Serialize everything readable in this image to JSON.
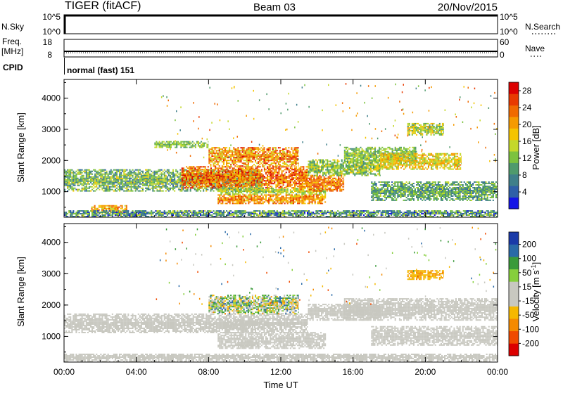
{
  "header": {
    "station": "TIGER (fitACF)",
    "beam": "Beam 03",
    "date": "20/Nov/2015"
  },
  "status_panels": {
    "nsky_label": "N.Sky",
    "nsky_ticks": [
      "10^5",
      "10^0"
    ],
    "nsearch_label": "N.Search",
    "nsearch_ticks": [
      "10^5",
      "10^0"
    ],
    "freq_label_1": "Freq.",
    "freq_label_2": "[MHz]",
    "freq_ticks": [
      "18",
      "8"
    ],
    "nave_label": "Nave",
    "nave_ticks": [
      "60",
      "0"
    ],
    "cpid_label": "CPID",
    "cpid_text": "normal (fast) 151"
  },
  "colors": {
    "power_scale": [
      "#1414e6",
      "#2f5fa8",
      "#3f7f8a",
      "#4f9a6c",
      "#7cc23e",
      "#c4d82a",
      "#f5c400",
      "#f59a00",
      "#f06a00",
      "#e83a00",
      "#dc0000"
    ],
    "velocity_scale": [
      "#dc0000",
      "#f04a00",
      "#f58a00",
      "#f5b800",
      "#c8c8c0",
      "#c8c8c0",
      "#86cf3c",
      "#3a9a3a",
      "#2a6aa8",
      "#1a3aa8"
    ]
  },
  "chart_data": [
    {
      "type": "heatmap",
      "title": "",
      "xlabel": "",
      "ylabel": "Slant Range [km]",
      "x_ticks": [
        "00:00",
        "04:00",
        "08:00",
        "12:00",
        "16:00",
        "20:00",
        "00:00"
      ],
      "xlim_hours": [
        0,
        24
      ],
      "y_ticks": [
        "1000",
        "2000",
        "3000",
        "4000"
      ],
      "ylim_km": [
        180,
        4600
      ],
      "colorbar": {
        "label": "Power [dB]",
        "ticks": [
          "4",
          "8",
          "12",
          "16",
          "20",
          "24",
          "28"
        ],
        "range": [
          0,
          30
        ]
      },
      "features": [
        {
          "t_start": 0.0,
          "t_end": 11.0,
          "r_min": 1000,
          "r_max": 1700,
          "value": 11,
          "spread": 6
        },
        {
          "t_start": 6.5,
          "t_end": 13.5,
          "r_min": 1100,
          "r_max": 1800,
          "value": 23,
          "spread": 6
        },
        {
          "t_start": 8.0,
          "t_end": 13.0,
          "r_min": 1800,
          "r_max": 2400,
          "value": 21,
          "spread": 7
        },
        {
          "t_start": 8.5,
          "t_end": 14.5,
          "r_min": 600,
          "r_max": 900,
          "value": 21,
          "spread": 5
        },
        {
          "t_start": 8.5,
          "t_end": 14.5,
          "r_min": 900,
          "r_max": 1100,
          "value": 14,
          "spread": 4
        },
        {
          "t_start": 13.0,
          "t_end": 15.5,
          "r_min": 1000,
          "r_max": 1500,
          "value": 22,
          "spread": 5
        },
        {
          "t_start": 13.5,
          "t_end": 17.5,
          "r_min": 1500,
          "r_max": 2000,
          "value": 13,
          "spread": 5
        },
        {
          "t_start": 15.5,
          "t_end": 19.5,
          "r_min": 1900,
          "r_max": 2400,
          "value": 12,
          "spread": 4
        },
        {
          "t_start": 17.5,
          "t_end": 22.0,
          "r_min": 1700,
          "r_max": 2200,
          "value": 17,
          "spread": 5
        },
        {
          "t_start": 17.0,
          "t_end": 24.0,
          "r_min": 700,
          "r_max": 1300,
          "value": 10,
          "spread": 5
        },
        {
          "t_start": 5.0,
          "t_end": 8.0,
          "r_min": 2400,
          "r_max": 2600,
          "value": 12,
          "spread": 4
        },
        {
          "t_start": 1.5,
          "t_end": 3.5,
          "r_min": 300,
          "r_max": 550,
          "value": 20,
          "spread": 5
        },
        {
          "t_start": 0.0,
          "t_end": 24.0,
          "r_min": 180,
          "r_max": 400,
          "value": 9,
          "spread": 7
        },
        {
          "t_start": 19.0,
          "t_end": 21.0,
          "r_min": 2800,
          "r_max": 3200,
          "value": 14,
          "spread": 6
        }
      ]
    },
    {
      "type": "heatmap",
      "title": "",
      "xlabel": "Time UT",
      "ylabel": "Slant Range [km]",
      "x_ticks": [
        "00:00",
        "04:00",
        "08:00",
        "12:00",
        "16:00",
        "20:00",
        "00:00"
      ],
      "xlim_hours": [
        0,
        24
      ],
      "y_ticks": [
        "1000",
        "2000",
        "3000",
        "4000"
      ],
      "ylim_km": [
        180,
        4600
      ],
      "colorbar": {
        "label": "Velocity [m s^-1]",
        "ticks": [
          "200",
          "100",
          "50",
          "15",
          "-15",
          "-50",
          "-100",
          "-200"
        ],
        "range": [
          -250,
          250
        ]
      },
      "features": [
        {
          "t_start": 0.0,
          "t_end": 13.5,
          "r_min": 1100,
          "r_max": 1700,
          "value": 0,
          "spread": 10
        },
        {
          "t_start": 8.0,
          "t_end": 13.0,
          "r_min": 1700,
          "r_max": 2300,
          "value": 40,
          "spread": 150
        },
        {
          "t_start": 8.5,
          "t_end": 14.5,
          "r_min": 600,
          "r_max": 1100,
          "value": 0,
          "spread": 10
        },
        {
          "t_start": 9.0,
          "t_end": 11.0,
          "r_min": 1200,
          "r_max": 1500,
          "value": -40,
          "spread": 8
        },
        {
          "t_start": 9.5,
          "t_end": 10.8,
          "r_min": 600,
          "r_max": 850,
          "value": -40,
          "spread": 6
        },
        {
          "t_start": 13.5,
          "t_end": 17.5,
          "r_min": 1500,
          "r_max": 2000,
          "value": 0,
          "spread": 12
        },
        {
          "t_start": 15.5,
          "t_end": 24.0,
          "r_min": 1500,
          "r_max": 2200,
          "value": 0,
          "spread": 12
        },
        {
          "t_start": 17.0,
          "t_end": 24.0,
          "r_min": 700,
          "r_max": 1300,
          "value": 0,
          "spread": 10
        },
        {
          "t_start": 0.0,
          "t_end": 24.0,
          "r_min": 180,
          "r_max": 450,
          "value": 0,
          "spread": 30
        },
        {
          "t_start": 19.0,
          "t_end": 21.0,
          "r_min": 2800,
          "r_max": 3100,
          "value": -90,
          "spread": 30
        }
      ]
    }
  ]
}
